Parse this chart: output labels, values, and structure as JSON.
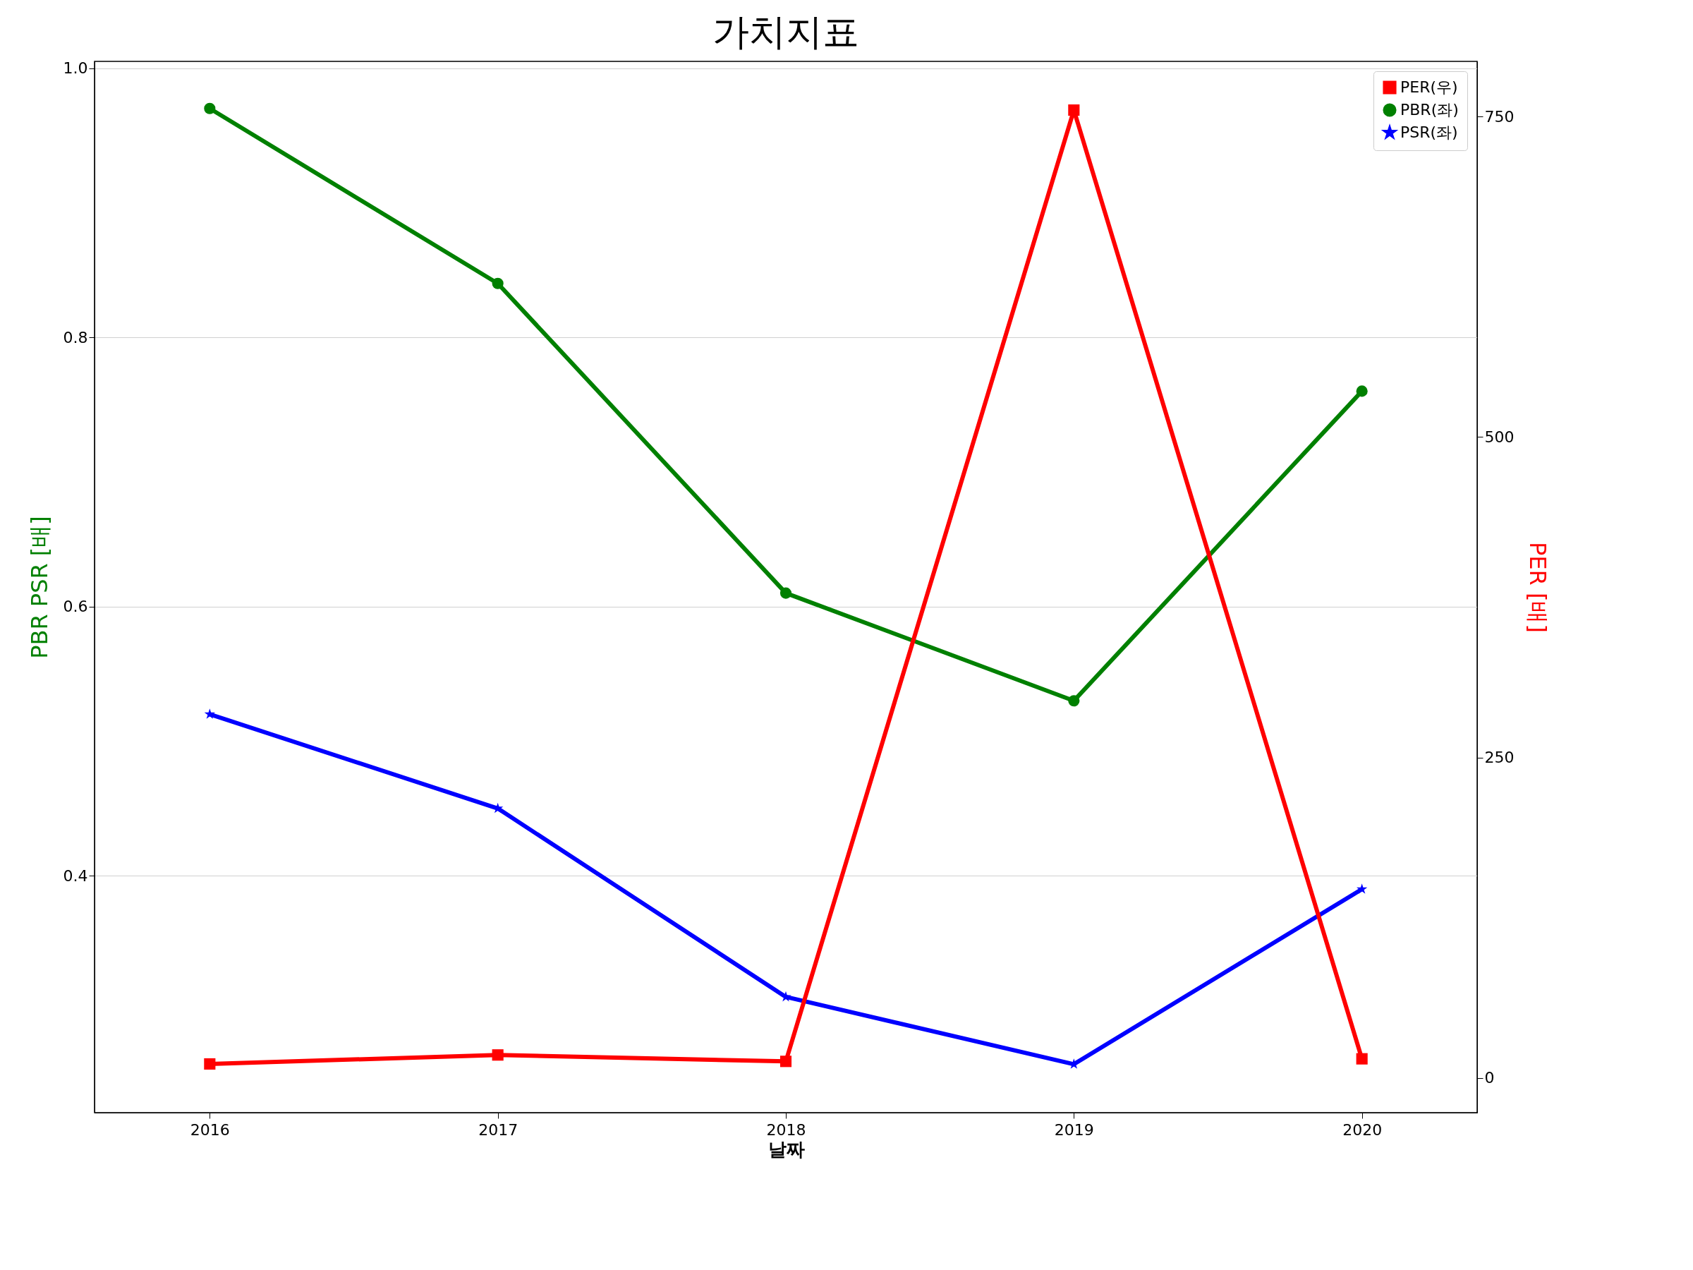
{
  "chart_data": {
    "type": "line",
    "title": "가치지표",
    "xlabel": "날짜",
    "ylabel": "PBR PSR [배]",
    "y2label": "PER [배]",
    "categories": [
      "2016",
      "2017",
      "2018",
      "2019",
      "2020"
    ],
    "series": [
      {
        "name": "PER(우)",
        "color": "#ff0000",
        "axis": "y2",
        "marker": "square",
        "values": [
          11,
          18,
          13,
          755,
          15
        ]
      },
      {
        "name": "PBR(좌)",
        "color": "#008000",
        "marker": "circle",
        "values": [
          0.97,
          0.84,
          0.61,
          0.53,
          0.76
        ]
      },
      {
        "name": "PSR(좌)",
        "color": "#0000ff",
        "marker": "star",
        "values": [
          0.52,
          0.45,
          0.31,
          0.26,
          0.39
        ]
      }
    ],
    "ylim": [
      0.224,
      1.005
    ],
    "yticks": [
      0.4,
      0.6,
      0.8,
      {
        "value": 1,
        "label": "1.0"
      }
    ],
    "y2lim": [
      -27,
      793
    ],
    "y2ticks": [
      0,
      250,
      500,
      750
    ],
    "grid": "y",
    "legend": "top right",
    "line_style": "solid"
  }
}
